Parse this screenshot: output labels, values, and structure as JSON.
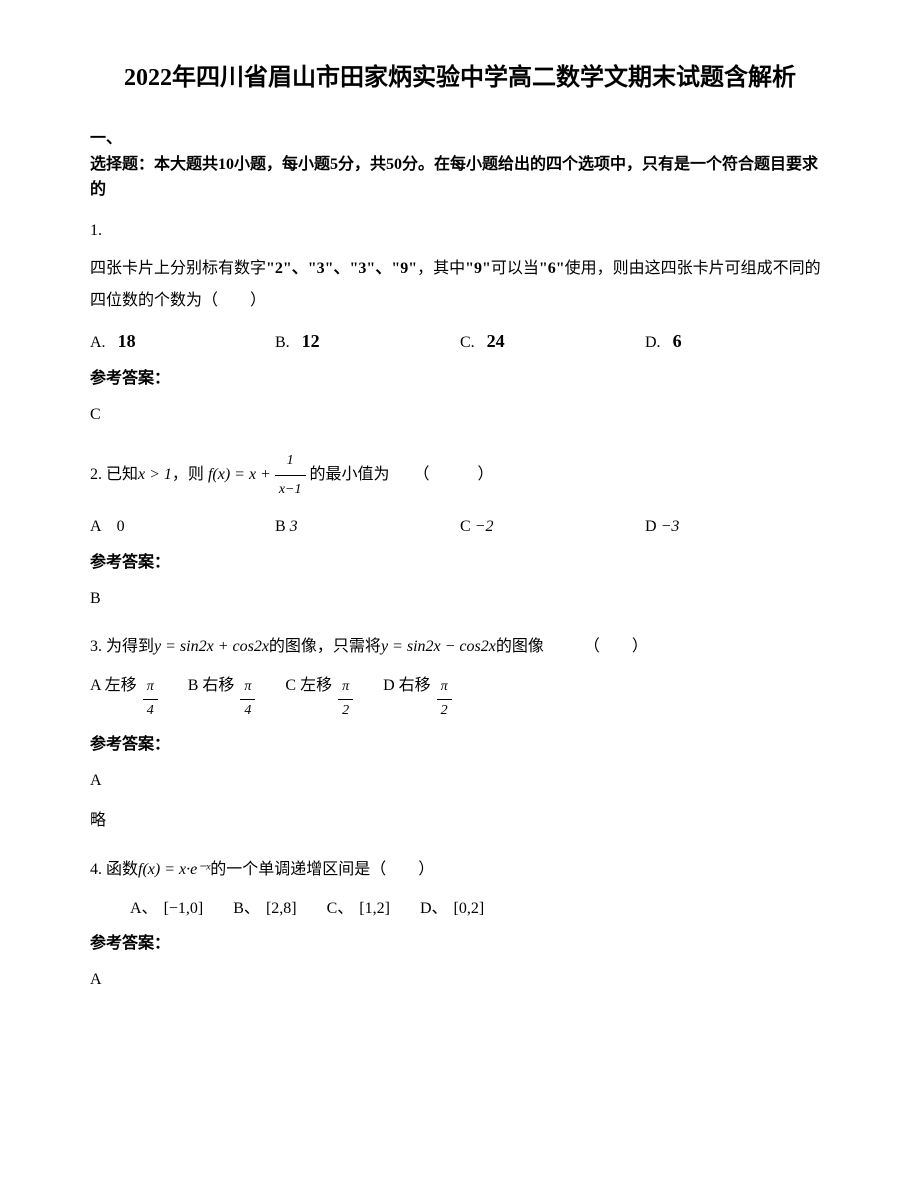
{
  "title": "2022年四川省眉山市田家炳实验中学高二数学文期末试题含解析",
  "section_header_1": "一、",
  "section_header_2": "选择题：本大题共10小题，每小题5分，共50分。在每小题给出的四个选项中，只有是一个符合题目要求的",
  "answer_label": "参考答案：",
  "q1": {
    "num": "1.",
    "text_1": "四张卡片上分别标有数字",
    "cards": "\"2\"、\"3\"、\"3\"、\"9\"",
    "text_2": "，其中",
    "nine": "\"9\"",
    "text_3": "可以当",
    "six": "\"6\"",
    "text_4": "使用，则由这四张卡片可组成不同的四位数的个数为（　　）",
    "opt_a_label": "A.",
    "opt_a_value": "18",
    "opt_b_label": "B.",
    "opt_b_value": "12",
    "opt_c_label": "C.",
    "opt_c_value": "24",
    "opt_d_label": "D.",
    "opt_d_value": "6",
    "answer": "C"
  },
  "q2": {
    "num_text": "2. 已知",
    "cond": "x > 1",
    "text_2": "，则",
    "fx": "f(x) = x +",
    "frac_num": "1",
    "frac_den": "x−1",
    "text_3": "的最小值为　　（　　　）",
    "opt_a": "A　0",
    "opt_b": "B",
    "opt_b_val": "3",
    "opt_c": "C",
    "opt_c_val": "−2",
    "opt_d": "D",
    "opt_d_val": "−3",
    "answer": "B"
  },
  "q3": {
    "num_text": "3. 为得到",
    "eq1": "y = sin2x + cos2x",
    "text_2": "的图像，只需将",
    "eq2": "y = sin2x − cos2x",
    "text_3": "的图像　　　（　　）",
    "opt_a_label": "A 左移",
    "opt_b_label": "B 右移",
    "opt_c_label": "C 左移",
    "opt_d_label": "D 右移",
    "pi": "π",
    "four": "4",
    "two": "2",
    "answer": "A",
    "skip": "略"
  },
  "q4": {
    "num_text": "4. 函数",
    "fx": "f(x) = x·e⁻ˣ",
    "text_2": "的一个单调递增区间是（　　）",
    "opt_a_label": "A、",
    "opt_a_val": "[−1,0]",
    "opt_b_label": "B、",
    "opt_b_val": "[2,8]",
    "opt_c_label": "C、",
    "opt_c_val": "[1,2]",
    "opt_d_label": "D、",
    "opt_d_val": "[0,2]",
    "answer": "A"
  }
}
